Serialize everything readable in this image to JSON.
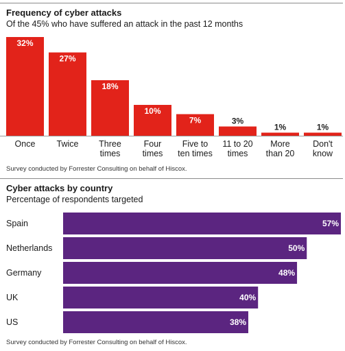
{
  "colors": {
    "freq_bar": "#e2231a",
    "country_bar": "#5b2580",
    "divider": "#8a8a8a"
  },
  "chart_data": [
    {
      "type": "bar",
      "title": "Frequency of cyber attacks",
      "subtitle": "Of the 45% who have suffered an attack in the past 12 months",
      "categories": [
        [
          "Once"
        ],
        [
          "Twice"
        ],
        [
          "Three",
          "times"
        ],
        [
          "Four",
          "times"
        ],
        [
          "Five to",
          "ten times"
        ],
        [
          "11 to 20",
          "times"
        ],
        [
          "More",
          "than 20"
        ],
        [
          "Don't",
          "know"
        ]
      ],
      "values": [
        32,
        27,
        18,
        10,
        7,
        3,
        1,
        1
      ],
      "value_labels": [
        "32%",
        "27%",
        "18%",
        "10%",
        "7%",
        "3%",
        "1%",
        "1%"
      ],
      "ylim": [
        0,
        32
      ],
      "source": "Survey conducted by Forrester Consulting on behalf of Hiscox."
    },
    {
      "type": "bar",
      "orientation": "horizontal",
      "title": "Cyber attacks by country",
      "subtitle": "Percentage of respondents targeted",
      "categories": [
        "Spain",
        "Netherlands",
        "Germany",
        "UK",
        "US"
      ],
      "values": [
        57,
        50,
        48,
        40,
        38
      ],
      "value_labels": [
        "57%",
        "50%",
        "48%",
        "40%",
        "38%"
      ],
      "xlim": [
        0,
        57
      ],
      "source": "Survey conducted by Forrester Consulting on behalf of Hiscox."
    }
  ]
}
